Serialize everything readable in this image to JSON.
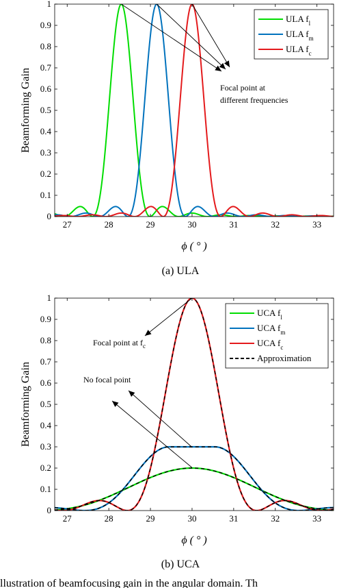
{
  "chart_data": [
    {
      "type": "line",
      "xlabel": "ϕ ( ° )",
      "ylabel": "Beamforming Gain",
      "xlim": [
        26.7,
        33.4
      ],
      "ylim": [
        0,
        1
      ],
      "xticks": [
        27,
        28,
        29,
        30,
        31,
        32,
        33
      ],
      "yticks": [
        0,
        0.1,
        0.2,
        0.3,
        0.4,
        0.5,
        0.6,
        0.7,
        0.8,
        0.9,
        1
      ],
      "grid": false,
      "legend_position": "top-right",
      "caption": "(a)  ULA",
      "annotation": "Focal point at different frequencies",
      "series": [
        {
          "name": "ULA f",
          "subscript": "l",
          "color": "#00dd00",
          "peak": 28.3,
          "halfwidth": 0.27
        },
        {
          "name": "ULA f",
          "subscript": "m",
          "color": "#0072bd",
          "peak": 29.15,
          "halfwidth": 0.27
        },
        {
          "name": "ULA f",
          "subscript": "c",
          "color": "#e41a1c",
          "peak": 30.0,
          "halfwidth": 0.27
        }
      ]
    },
    {
      "type": "line",
      "xlabel": "ϕ ( ° )",
      "ylabel": "Beamforming Gain",
      "xlim": [
        26.7,
        33.4
      ],
      "ylim": [
        0,
        1
      ],
      "xticks": [
        27,
        28,
        29,
        30,
        31,
        32,
        33
      ],
      "yticks": [
        0,
        0.1,
        0.2,
        0.3,
        0.4,
        0.5,
        0.6,
        0.7,
        0.8,
        0.9,
        1
      ],
      "grid": false,
      "legend_position": "top-right",
      "caption": "(b)  UCA",
      "annotations": [
        {
          "text": "Focal point at f",
          "subscript": "c"
        },
        {
          "text": "No focal point"
        }
      ],
      "series": [
        {
          "name": "UCA f",
          "subscript": "l",
          "color": "#00dd00",
          "profile": "flat-low"
        },
        {
          "name": "UCA f",
          "subscript": "m",
          "color": "#0072bd",
          "profile": "flat-mid"
        },
        {
          "name": "UCA f",
          "subscript": "c",
          "color": "#e41a1c",
          "profile": "focal"
        },
        {
          "name": "Approximation",
          "color": "#000000",
          "dashed": true
        }
      ]
    }
  ],
  "footer_text": "llustration of beamfocusing gain in the angular domain. Th"
}
